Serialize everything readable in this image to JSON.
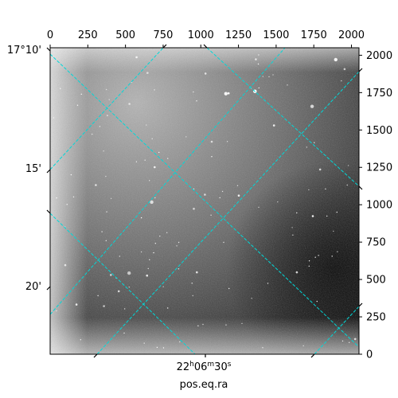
{
  "chart_data": {
    "type": "heatmap",
    "title": "",
    "xlabel": "pos.eq.ra",
    "ylabel": "",
    "pixel_axes": {
      "x_ticks": [
        "0",
        "250",
        "500",
        "750",
        "1000",
        "1250",
        "1500",
        "1750",
        "2000"
      ],
      "y_ticks": [
        "0",
        "250",
        "500",
        "750",
        "1000",
        "1250",
        "1500",
        "1750",
        "2000"
      ],
      "xlim": [
        0,
        2050
      ],
      "ylim": [
        0,
        2050
      ]
    },
    "world_axes": {
      "ra_ticks": [
        {
          "h": "22",
          "m": "06",
          "s": "30"
        }
      ],
      "dec_ticks": [
        "17°10'",
        "15'",
        "20'"
      ]
    },
    "image_colormap": "gray",
    "grid": true,
    "grid_color": "#00d8d8",
    "grid_style": "dashed"
  }
}
